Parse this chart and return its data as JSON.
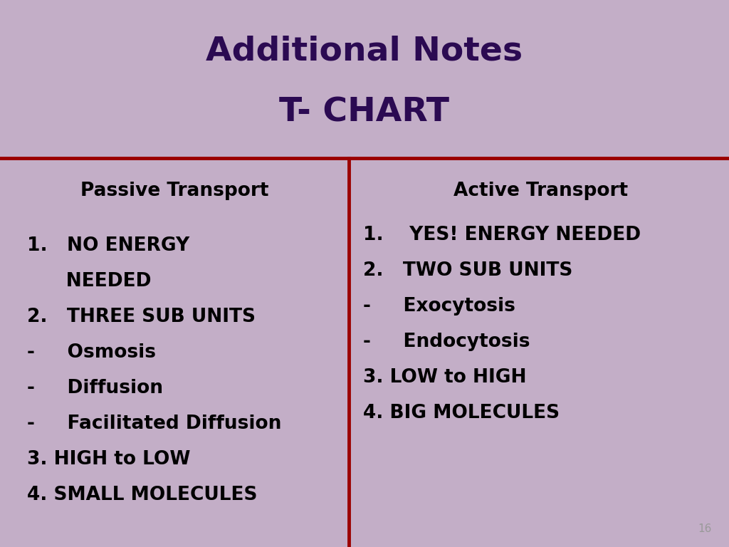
{
  "bg_color": "#c3aec7",
  "title_line1": "Additional Notes",
  "title_line2": "T- CHART",
  "title_color": "#2b0a52",
  "title_fontsize": 34,
  "divider_color": "#9b0000",
  "divider_linewidth": 3.5,
  "vertical_line_color": "#9b0000",
  "vertical_line_linewidth": 3.5,
  "left_header": "Passive Transport",
  "right_header": "Active Transport",
  "header_fontsize": 19,
  "header_color": "#000000",
  "body_fontsize": 19,
  "body_color": "#000000",
  "left_lines": [
    "1.   NO ENERGY",
    "      NEEDED",
    "2.   THREE SUB UNITS",
    "-     Osmosis",
    "-     Diffusion",
    "-     Facilitated Diffusion",
    "3. HIGH to LOW",
    "4. SMALL MOLECULES"
  ],
  "right_lines": [
    "1.    YES! ENERGY NEEDED",
    "2.   TWO SUB UNITS",
    "-     Exocytosis",
    "-     Endocytosis",
    "3. LOW to HIGH",
    "4. BIG MOLECULES"
  ],
  "page_number": "16",
  "page_number_color": "#999999",
  "page_number_fontsize": 11,
  "fig_width": 10.24,
  "fig_height": 7.68,
  "dpi": 100
}
